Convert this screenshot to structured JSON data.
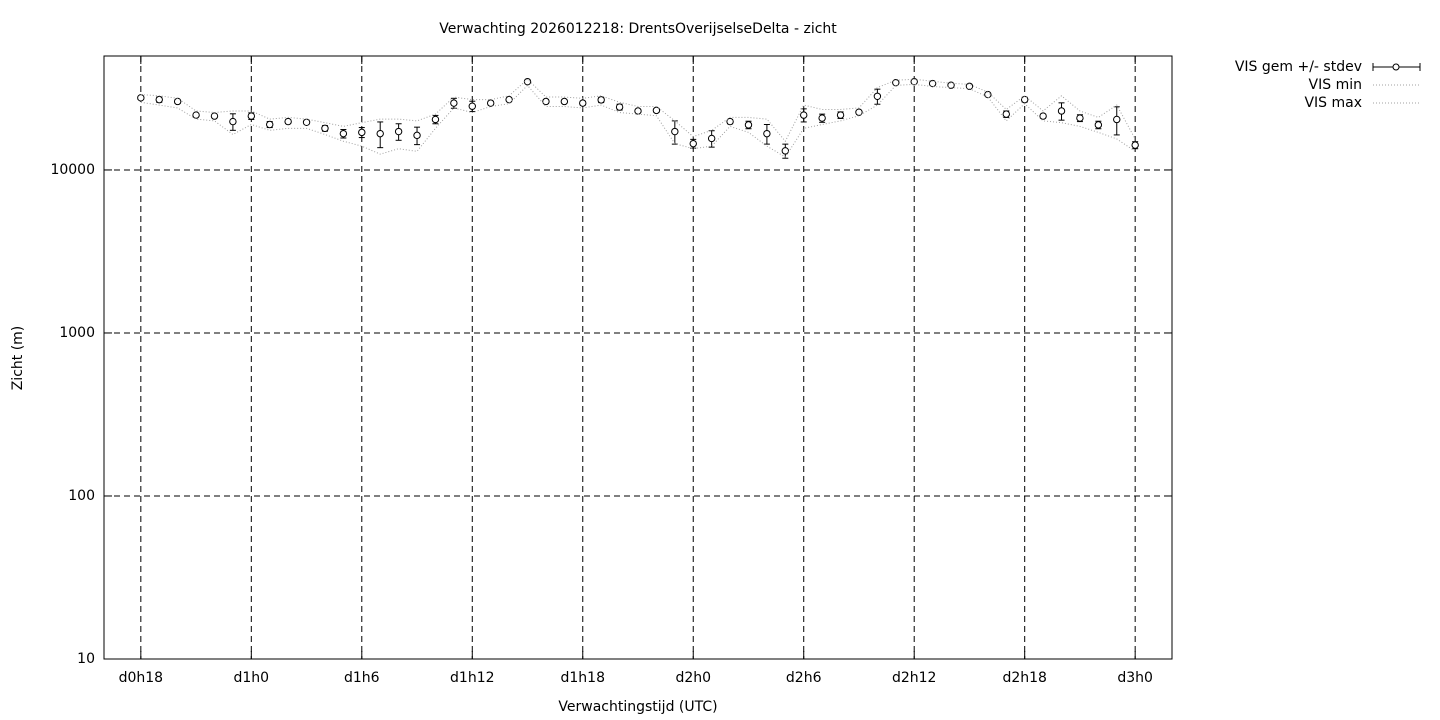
{
  "chart_data": {
    "type": "errorbar-line",
    "title": "Verwachting 2026012218: DrentsOverijselseDelta - zicht",
    "xlabel": "Verwachtingstijd (UTC)",
    "ylabel": "Zicht (m)",
    "log_y": true,
    "grid": true,
    "legend": "outside-top-right",
    "xlim": [
      16,
      74
    ],
    "xticks": [
      {
        "value": 18,
        "label": "d0h18"
      },
      {
        "value": 24,
        "label": "d1h0"
      },
      {
        "value": 30,
        "label": "d1h6"
      },
      {
        "value": 36,
        "label": "d1h12"
      },
      {
        "value": 42,
        "label": "d1h18"
      },
      {
        "value": 48,
        "label": "d2h0"
      },
      {
        "value": 54,
        "label": "d2h6"
      },
      {
        "value": 60,
        "label": "d2h12"
      },
      {
        "value": 66,
        "label": "d2h18"
      },
      {
        "value": 72,
        "label": "d3h0"
      }
    ],
    "ylim": [
      10,
      50000
    ],
    "yticks": [
      10,
      100,
      1000,
      10000
    ],
    "x": [
      18,
      19,
      20,
      21,
      22,
      23,
      24,
      25,
      26,
      27,
      28,
      29,
      30,
      31,
      32,
      33,
      34,
      35,
      36,
      37,
      38,
      39,
      40,
      41,
      42,
      43,
      44,
      45,
      46,
      47,
      48,
      49,
      50,
      51,
      52,
      53,
      54,
      55,
      56,
      57,
      58,
      59,
      60,
      61,
      62,
      63,
      64,
      65,
      66,
      67,
      68,
      69,
      70,
      71,
      72
    ],
    "series": [
      {
        "name": "VIS gem +/- stdev",
        "color": "#000000",
        "values": [
          27700,
          27000,
          26300,
          21700,
          21400,
          19800,
          21400,
          19000,
          19800,
          19600,
          18000,
          16700,
          17000,
          16700,
          17200,
          16300,
          20400,
          25700,
          24600,
          25700,
          27000,
          34800,
          26300,
          26300,
          25700,
          26900,
          24300,
          23000,
          23200,
          17200,
          14500,
          15600,
          19800,
          18900,
          16700,
          13100,
          21700,
          20800,
          21700,
          22600,
          28300,
          34300,
          34800,
          33900,
          33100,
          32600,
          29000,
          22000,
          27000,
          21400,
          23000,
          20800,
          18900,
          20400,
          14200
        ],
        "errors": [
          600,
          1000,
          700,
          400,
          400,
          2300,
          1000,
          800,
          500,
          500,
          700,
          1000,
          1200,
          3000,
          2000,
          2000,
          1200,
          1800,
          1800,
          700,
          500,
          600,
          700,
          600,
          700,
          1000,
          1000,
          500,
          600,
          2800,
          900,
          1800,
          600,
          1000,
          2300,
          1300,
          2000,
          1200,
          1000,
          600,
          3000,
          500,
          500,
          400,
          400,
          400,
          400,
          1000,
          900,
          600,
          2800,
          1000,
          1000,
          4000,
          700
        ]
      },
      {
        "name": "VIS min",
        "color": "#a0a0a0",
        "values": [
          26000,
          25000,
          24000,
          20500,
          20000,
          16500,
          19000,
          17500,
          18000,
          18000,
          16500,
          15000,
          14000,
          12500,
          13500,
          13000,
          18000,
          24000,
          22500,
          24500,
          25500,
          33000,
          24500,
          24500,
          24000,
          25000,
          22500,
          22000,
          21500,
          14500,
          13500,
          14000,
          18500,
          17000,
          14000,
          12000,
          18000,
          19000,
          20000,
          21500,
          25000,
          33000,
          33500,
          32500,
          32000,
          31500,
          28000,
          20000,
          25500,
          20000,
          19500,
          18500,
          17000,
          15500,
          13000
        ]
      },
      {
        "name": "VIS max",
        "color": "#a0a0a0",
        "values": [
          29000,
          28500,
          27500,
          23000,
          22500,
          23000,
          23000,
          20500,
          21000,
          20500,
          19500,
          18500,
          19500,
          20500,
          20500,
          20000,
          22000,
          28000,
          27000,
          27000,
          28500,
          36000,
          28000,
          28000,
          27500,
          28500,
          26000,
          24500,
          24500,
          20000,
          16000,
          17500,
          21000,
          21000,
          20500,
          15000,
          25000,
          23500,
          23500,
          24000,
          32000,
          35500,
          36000,
          35000,
          34000,
          33500,
          30000,
          23500,
          28500,
          23000,
          28500,
          23000,
          21000,
          25000,
          15500
        ]
      }
    ]
  }
}
